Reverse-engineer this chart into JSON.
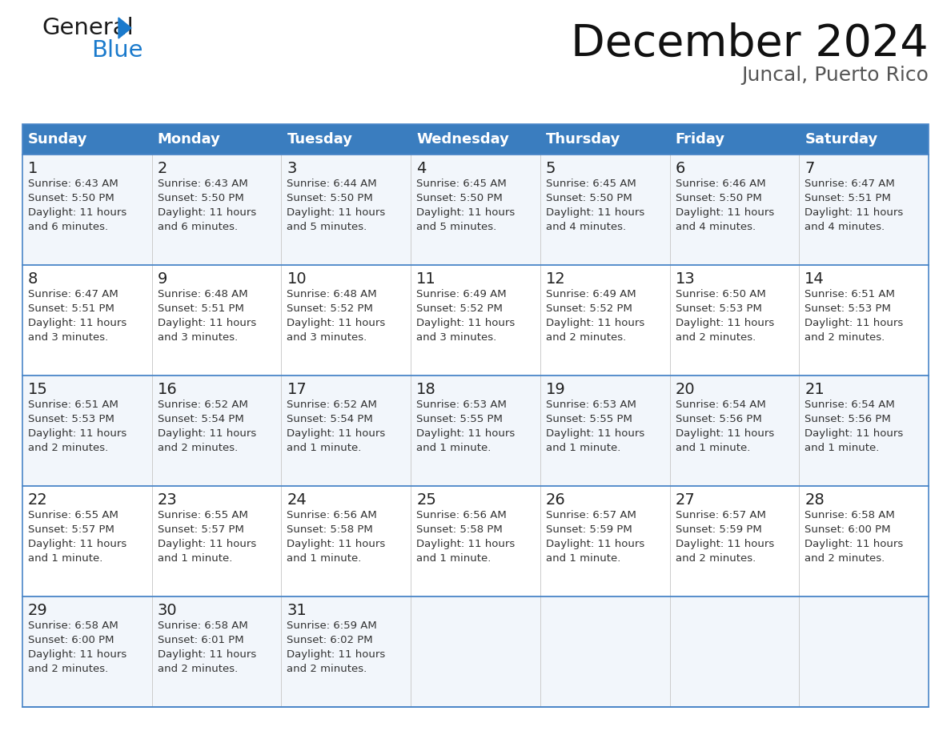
{
  "title": "December 2024",
  "subtitle": "Juncal, Puerto Rico",
  "header_color": "#3a7dbf",
  "header_text_color": "#ffffff",
  "bg_color": "#ffffff",
  "cell_bg_even": "#f2f6fb",
  "cell_bg_odd": "#ffffff",
  "border_color": "#4a86c8",
  "divider_color": "#cccccc",
  "text_color": "#222222",
  "subtext_color": "#333333",
  "days_of_week": [
    "Sunday",
    "Monday",
    "Tuesday",
    "Wednesday",
    "Thursday",
    "Friday",
    "Saturday"
  ],
  "weeks": [
    [
      {
        "day": 1,
        "sunrise": "6:43 AM",
        "sunset": "5:50 PM",
        "daylight": "11 hours\nand 6 minutes."
      },
      {
        "day": 2,
        "sunrise": "6:43 AM",
        "sunset": "5:50 PM",
        "daylight": "11 hours\nand 6 minutes."
      },
      {
        "day": 3,
        "sunrise": "6:44 AM",
        "sunset": "5:50 PM",
        "daylight": "11 hours\nand 5 minutes."
      },
      {
        "day": 4,
        "sunrise": "6:45 AM",
        "sunset": "5:50 PM",
        "daylight": "11 hours\nand 5 minutes."
      },
      {
        "day": 5,
        "sunrise": "6:45 AM",
        "sunset": "5:50 PM",
        "daylight": "11 hours\nand 4 minutes."
      },
      {
        "day": 6,
        "sunrise": "6:46 AM",
        "sunset": "5:50 PM",
        "daylight": "11 hours\nand 4 minutes."
      },
      {
        "day": 7,
        "sunrise": "6:47 AM",
        "sunset": "5:51 PM",
        "daylight": "11 hours\nand 4 minutes."
      }
    ],
    [
      {
        "day": 8,
        "sunrise": "6:47 AM",
        "sunset": "5:51 PM",
        "daylight": "11 hours\nand 3 minutes."
      },
      {
        "day": 9,
        "sunrise": "6:48 AM",
        "sunset": "5:51 PM",
        "daylight": "11 hours\nand 3 minutes."
      },
      {
        "day": 10,
        "sunrise": "6:48 AM",
        "sunset": "5:52 PM",
        "daylight": "11 hours\nand 3 minutes."
      },
      {
        "day": 11,
        "sunrise": "6:49 AM",
        "sunset": "5:52 PM",
        "daylight": "11 hours\nand 3 minutes."
      },
      {
        "day": 12,
        "sunrise": "6:49 AM",
        "sunset": "5:52 PM",
        "daylight": "11 hours\nand 2 minutes."
      },
      {
        "day": 13,
        "sunrise": "6:50 AM",
        "sunset": "5:53 PM",
        "daylight": "11 hours\nand 2 minutes."
      },
      {
        "day": 14,
        "sunrise": "6:51 AM",
        "sunset": "5:53 PM",
        "daylight": "11 hours\nand 2 minutes."
      }
    ],
    [
      {
        "day": 15,
        "sunrise": "6:51 AM",
        "sunset": "5:53 PM",
        "daylight": "11 hours\nand 2 minutes."
      },
      {
        "day": 16,
        "sunrise": "6:52 AM",
        "sunset": "5:54 PM",
        "daylight": "11 hours\nand 2 minutes."
      },
      {
        "day": 17,
        "sunrise": "6:52 AM",
        "sunset": "5:54 PM",
        "daylight": "11 hours\nand 1 minute."
      },
      {
        "day": 18,
        "sunrise": "6:53 AM",
        "sunset": "5:55 PM",
        "daylight": "11 hours\nand 1 minute."
      },
      {
        "day": 19,
        "sunrise": "6:53 AM",
        "sunset": "5:55 PM",
        "daylight": "11 hours\nand 1 minute."
      },
      {
        "day": 20,
        "sunrise": "6:54 AM",
        "sunset": "5:56 PM",
        "daylight": "11 hours\nand 1 minute."
      },
      {
        "day": 21,
        "sunrise": "6:54 AM",
        "sunset": "5:56 PM",
        "daylight": "11 hours\nand 1 minute."
      }
    ],
    [
      {
        "day": 22,
        "sunrise": "6:55 AM",
        "sunset": "5:57 PM",
        "daylight": "11 hours\nand 1 minute."
      },
      {
        "day": 23,
        "sunrise": "6:55 AM",
        "sunset": "5:57 PM",
        "daylight": "11 hours\nand 1 minute."
      },
      {
        "day": 24,
        "sunrise": "6:56 AM",
        "sunset": "5:58 PM",
        "daylight": "11 hours\nand 1 minute."
      },
      {
        "day": 25,
        "sunrise": "6:56 AM",
        "sunset": "5:58 PM",
        "daylight": "11 hours\nand 1 minute."
      },
      {
        "day": 26,
        "sunrise": "6:57 AM",
        "sunset": "5:59 PM",
        "daylight": "11 hours\nand 1 minute."
      },
      {
        "day": 27,
        "sunrise": "6:57 AM",
        "sunset": "5:59 PM",
        "daylight": "11 hours\nand 2 minutes."
      },
      {
        "day": 28,
        "sunrise": "6:58 AM",
        "sunset": "6:00 PM",
        "daylight": "11 hours\nand 2 minutes."
      }
    ],
    [
      {
        "day": 29,
        "sunrise": "6:58 AM",
        "sunset": "6:00 PM",
        "daylight": "11 hours\nand 2 minutes."
      },
      {
        "day": 30,
        "sunrise": "6:58 AM",
        "sunset": "6:01 PM",
        "daylight": "11 hours\nand 2 minutes."
      },
      {
        "day": 31,
        "sunrise": "6:59 AM",
        "sunset": "6:02 PM",
        "daylight": "11 hours\nand 2 minutes."
      },
      null,
      null,
      null,
      null
    ]
  ],
  "logo_general_color": "#1a1a1a",
  "logo_blue_color": "#1a7acc",
  "logo_triangle_color": "#1a7acc",
  "title_fontsize": 40,
  "subtitle_fontsize": 18,
  "header_fontsize": 13,
  "day_num_fontsize": 14,
  "cell_fontsize": 9.5
}
